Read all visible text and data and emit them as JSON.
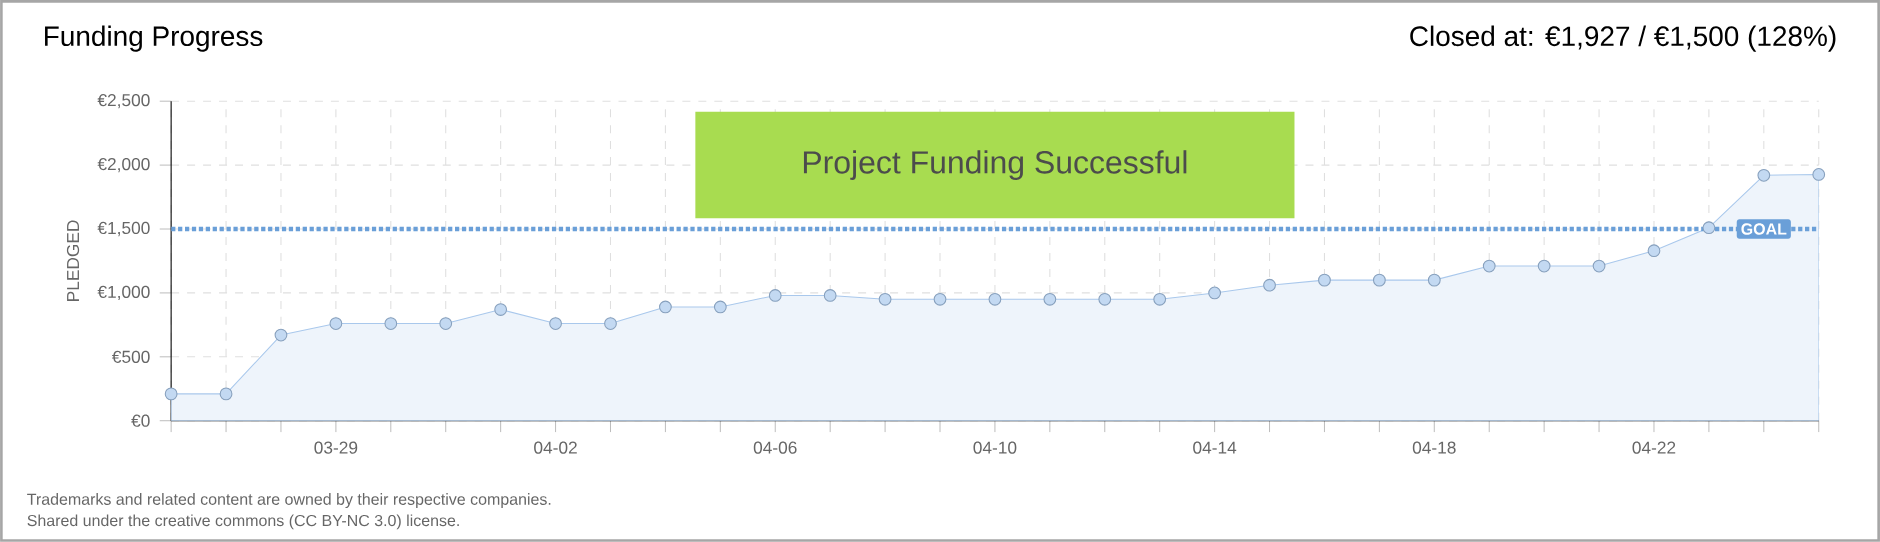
{
  "chart_data": {
    "type": "area",
    "title": "Funding Progress",
    "subtitle": "Closed at: €1,927 / €1,500 (128%)",
    "ylabel": "PLEDGED",
    "categories": [
      null,
      null,
      null,
      "03-29",
      null,
      null,
      null,
      "04-02",
      null,
      null,
      null,
      "04-06",
      null,
      null,
      null,
      "04-10",
      null,
      null,
      null,
      "04-14",
      null,
      null,
      null,
      "04-18",
      null,
      null,
      null,
      "04-22",
      null,
      null,
      null
    ],
    "series": [
      {
        "color": "#a9c8ec",
        "values": [
          210,
          210,
          670,
          760,
          760,
          760,
          870,
          760,
          760,
          890,
          890,
          980,
          980,
          950,
          950,
          950,
          950,
          950,
          950,
          1000,
          1060,
          1100,
          1100,
          1100,
          1210,
          1210,
          1210,
          1330,
          1510,
          1920,
          1927
        ]
      }
    ],
    "ylim": [
      0,
      2500
    ],
    "yticks": [
      {
        "value": 0,
        "label": "€0"
      },
      {
        "value": 500,
        "label": "€500"
      },
      {
        "value": 1000,
        "label": "€1,000"
      },
      {
        "value": 1500,
        "label": "€1,500"
      },
      {
        "value": 2000,
        "label": "€2,000"
      },
      {
        "value": 2500,
        "label": "€2,500"
      }
    ],
    "ref_lines": [
      {
        "axis": "y",
        "value": 1500,
        "label": "GOAL",
        "color": "#6a9fd8",
        "line_style": "dotted"
      }
    ],
    "annotations": [
      "Project Funding Successful",
      "Trademarks and related content are owned by their respective companies.",
      "Shared under the creative commons (CC BY-NC 3.0) license."
    ],
    "grid": true,
    "marker": "circle",
    "line_style": "solid"
  }
}
